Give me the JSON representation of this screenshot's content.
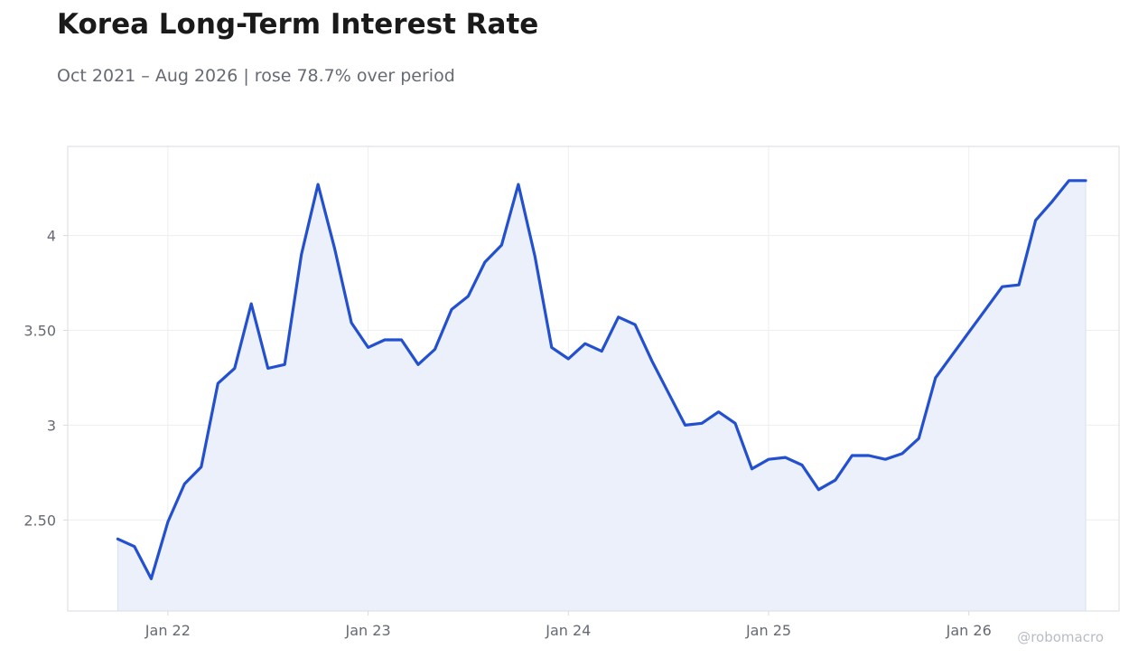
{
  "header": {
    "title": "Korea Long-Term Interest Rate",
    "subtitle": "Oct 2021 – Aug 2026 | rose 78.7% over period"
  },
  "watermark": "@robomacro",
  "colors": {
    "line": "#2350cf",
    "fill": "#ebf0fb",
    "grid": "#eceef1",
    "frame": "#d9dbe0",
    "tick_text": "#666a73"
  },
  "chart_data": {
    "type": "area",
    "title": "Korea Long-Term Interest Rate",
    "subtitle": "Oct 2021 – Aug 2026 | rose 78.7% over period",
    "xlabel": "",
    "ylabel": "",
    "grid": true,
    "legend": "none",
    "x_start": "2021-10",
    "x_frequency": "monthly",
    "x_ticks": [
      {
        "label": "Jan 22",
        "date": "2022-01"
      },
      {
        "label": "Jan 23",
        "date": "2023-01"
      },
      {
        "label": "Jan 24",
        "date": "2024-01"
      },
      {
        "label": "Jan 25",
        "date": "2025-01"
      },
      {
        "label": "Jan 26",
        "date": "2026-01"
      }
    ],
    "y_ticks": [
      {
        "label": "2.50",
        "value": 2.5
      },
      {
        "label": "3",
        "value": 3.0
      },
      {
        "label": "3.50",
        "value": 3.5
      },
      {
        "label": "4",
        "value": 4.0
      }
    ],
    "xlim": [
      "2021-07",
      "2026-10"
    ],
    "ylim": [
      2.02,
      4.47
    ],
    "series": [
      {
        "values": [
          2.4,
          2.36,
          2.19,
          2.49,
          2.69,
          2.78,
          3.22,
          3.3,
          3.64,
          3.3,
          3.32,
          3.9,
          4.27,
          3.93,
          3.54,
          3.41,
          3.45,
          3.45,
          3.32,
          3.4,
          3.61,
          3.68,
          3.86,
          3.95,
          4.27,
          3.89,
          3.41,
          3.35,
          3.43,
          3.39,
          3.57,
          3.53,
          3.34,
          3.17,
          3.0,
          3.01,
          3.07,
          3.01,
          2.77,
          2.82,
          2.83,
          2.79,
          2.66,
          2.71,
          2.84,
          2.84,
          2.82,
          2.85,
          2.93,
          3.25,
          3.37,
          3.49,
          3.61,
          3.73,
          3.74,
          4.08,
          4.18,
          4.29,
          4.29
        ]
      }
    ]
  }
}
